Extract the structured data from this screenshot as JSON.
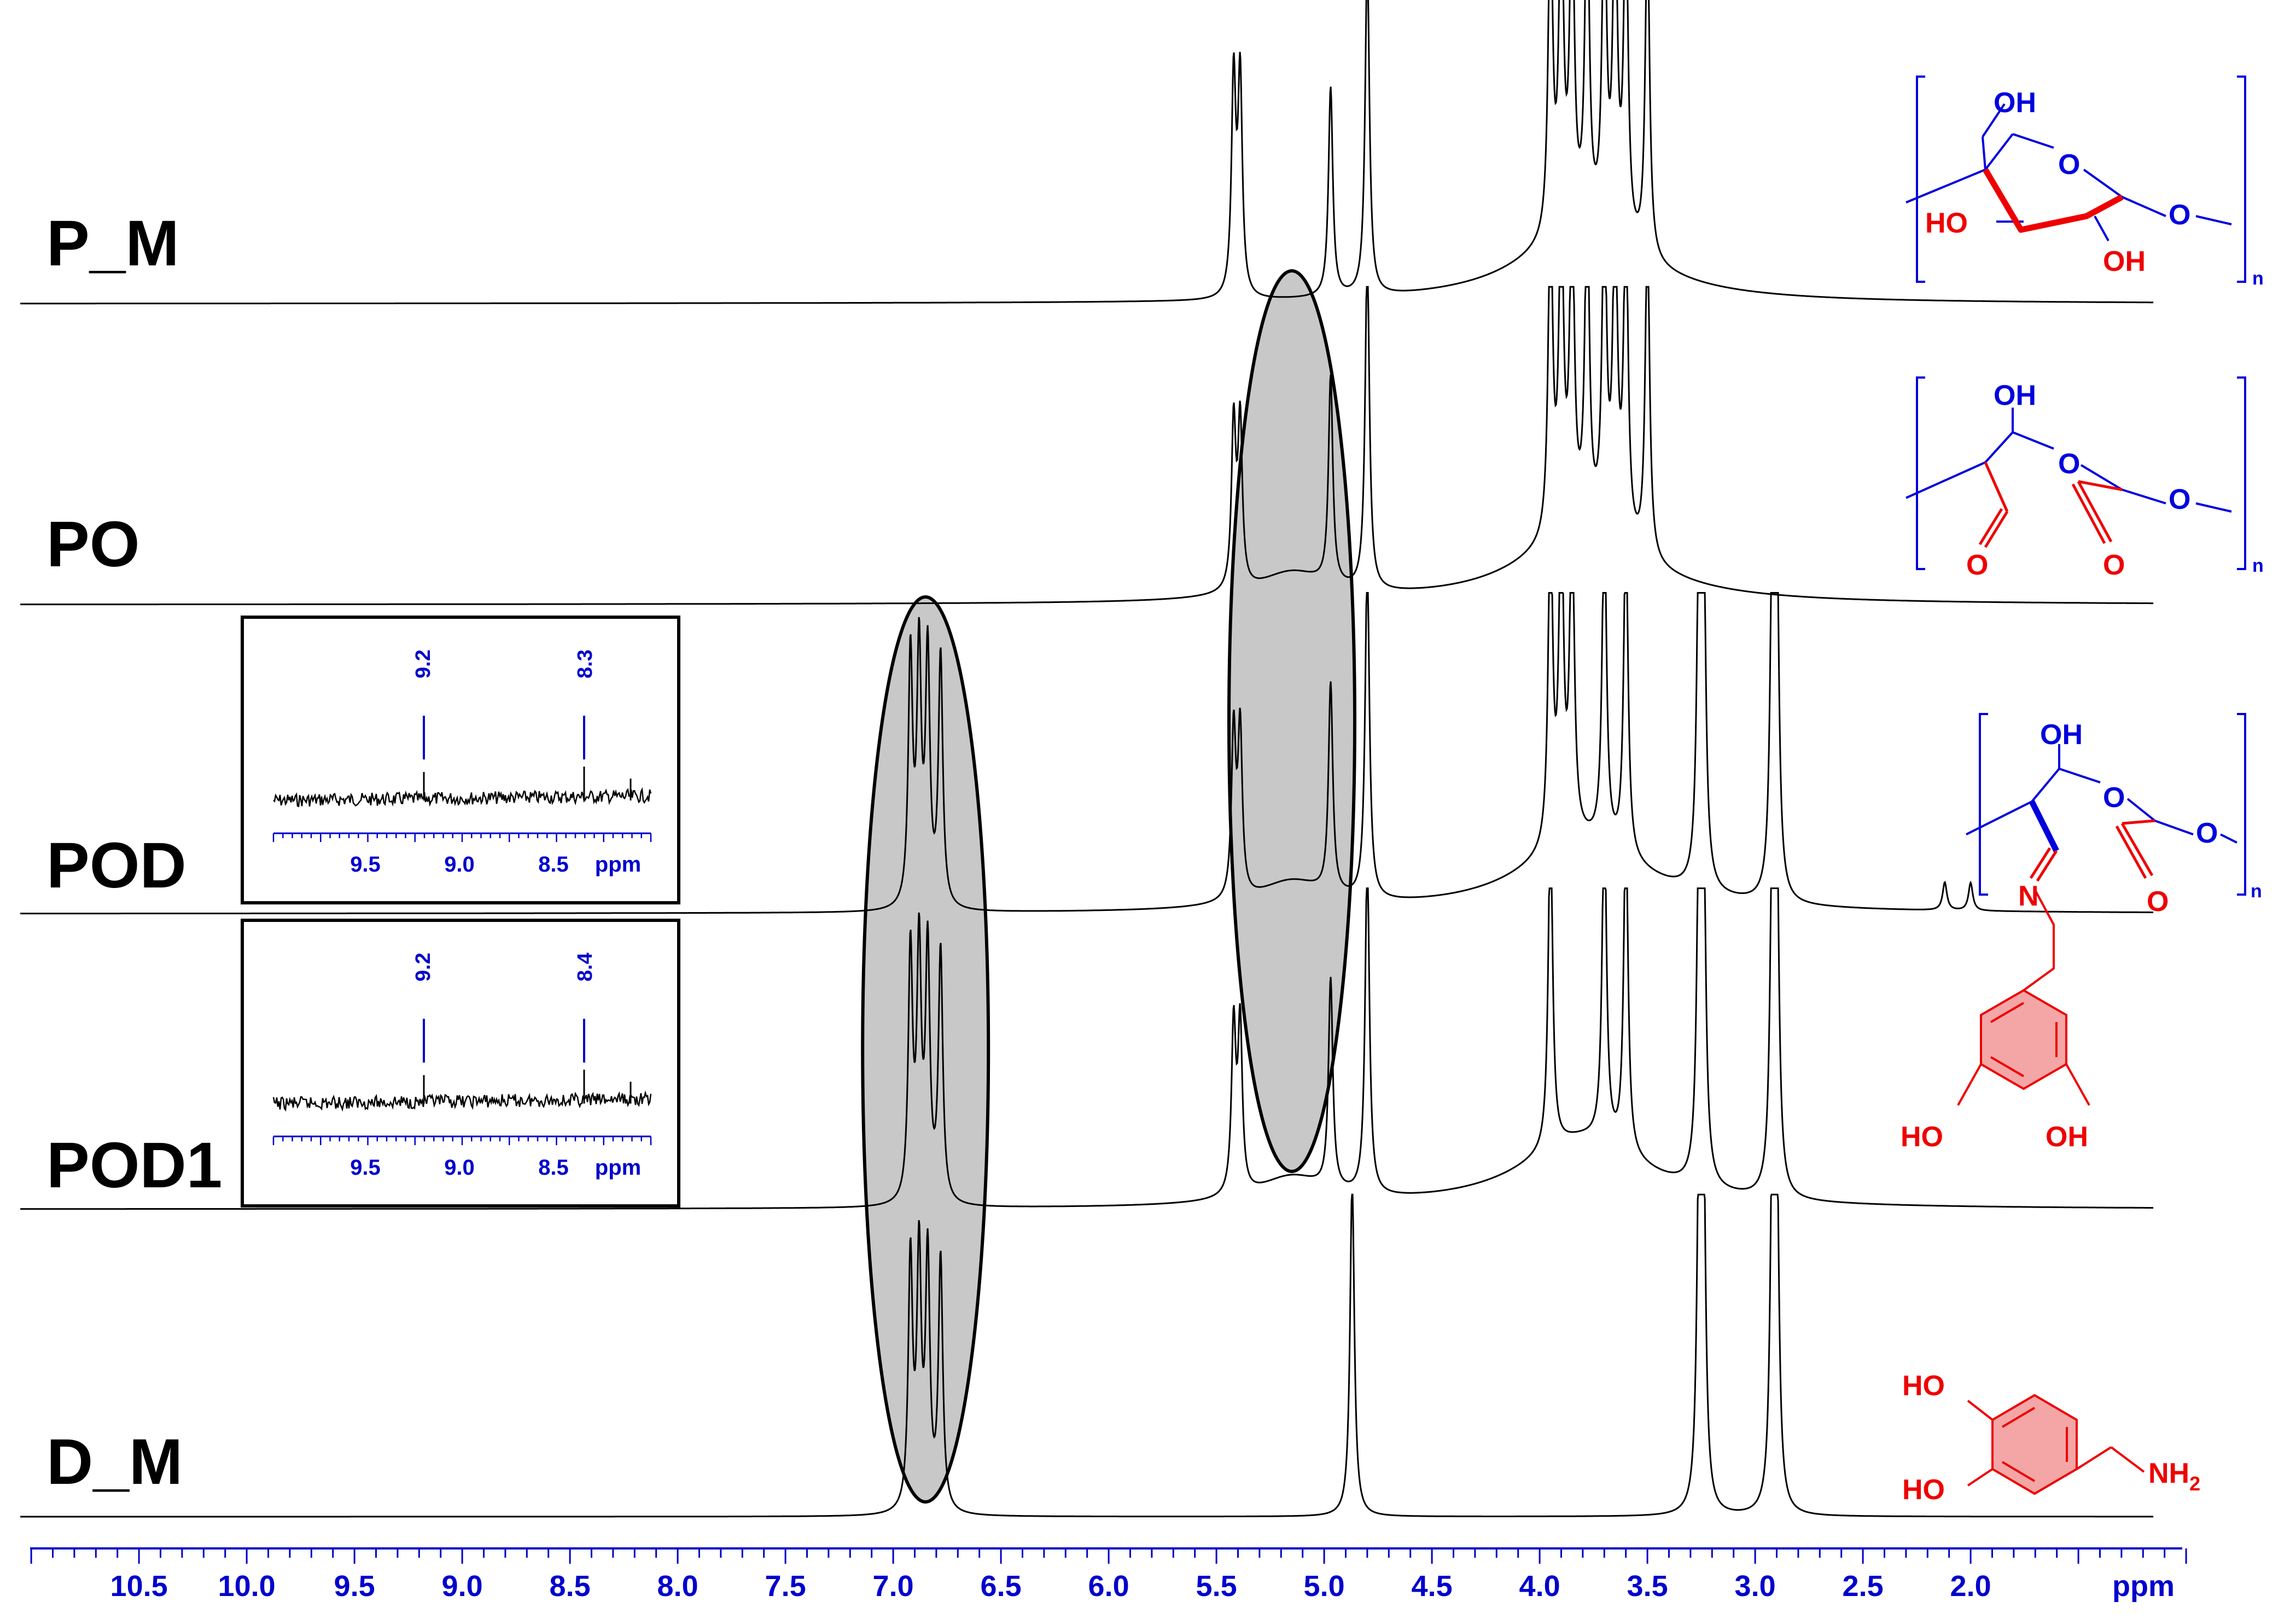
{
  "chart_data": {
    "type": "line",
    "title": "",
    "xlabel": "ppm",
    "x_reversed": true,
    "xlim": [
      11.0,
      1.0
    ],
    "x_ticks": [
      "10.5",
      "10.0",
      "9.5",
      "9.0",
      "8.5",
      "8.0",
      "7.5",
      "7.0",
      "6.5",
      "6.0",
      "5.5",
      "5.0",
      "4.5",
      "4.0",
      "3.5",
      "3.0",
      "2.5",
      "2.0"
    ],
    "series": [
      {
        "name": "P_M",
        "peaks": [
          5.42,
          5.39,
          4.97,
          4.8,
          3.95,
          3.9,
          3.85,
          3.78,
          3.7,
          3.65,
          3.6,
          3.5
        ]
      },
      {
        "name": "PO",
        "peaks": [
          5.42,
          5.39,
          4.97,
          4.8,
          3.95,
          3.9,
          3.85,
          3.78,
          3.7,
          3.65,
          3.6,
          3.5
        ]
      },
      {
        "name": "POD",
        "peaks": [
          6.92,
          6.88,
          6.84,
          6.78,
          5.42,
          5.39,
          4.97,
          4.8,
          3.95,
          3.9,
          3.85,
          3.7,
          3.6,
          3.26,
          3.24,
          2.92,
          2.9,
          2.12,
          2.0
        ]
      },
      {
        "name": "POD1",
        "peaks": [
          6.92,
          6.88,
          6.84,
          6.78,
          5.42,
          5.39,
          4.97,
          4.8,
          3.95,
          3.7,
          3.6,
          3.26,
          3.24,
          2.92,
          2.9
        ]
      },
      {
        "name": "D_M",
        "peaks": [
          6.92,
          6.88,
          6.84,
          6.78,
          4.87,
          3.26,
          3.24,
          2.92,
          2.9
        ]
      }
    ],
    "highlight_regions": [
      {
        "center": 6.85,
        "shape": "ellipse"
      },
      {
        "center": 5.15,
        "shape": "ellipse"
      }
    ],
    "insets": [
      {
        "sample": "POD",
        "xlabel": "ppm",
        "x_ticks": [
          "9.5",
          "9.0",
          "8.5"
        ],
        "peak_labels": [
          "9.2",
          "8.3"
        ]
      },
      {
        "sample": "POD1",
        "xlabel": "ppm",
        "x_ticks": [
          "9.5",
          "9.0",
          "8.5"
        ],
        "peak_labels": [
          "9.2",
          "8.4"
        ]
      }
    ]
  },
  "structures": {
    "n_label": "n",
    "P_M": {
      "oh_top": "OH",
      "ho_left": "HO",
      "oh_bottom": "OH",
      "ring_o": "O",
      "link_o": "O"
    },
    "PO": {
      "oh_top": "OH",
      "ring_o": "O",
      "link_o": "O",
      "aldehyde_o1": "O",
      "aldehyde_o2": "O"
    },
    "POD": {
      "oh_top": "OH",
      "ring_o": "O",
      "link_o": "O",
      "imine_n": "N",
      "aldehyde_o": "O"
    },
    "POD1": {
      "ho_left": "HO",
      "oh_right": "OH"
    },
    "D_M": {
      "ho_top": "HO",
      "ho_bottom": "HO",
      "amine": "NH",
      "amine_sub": "2"
    }
  },
  "colors": {
    "spectrum": "#000000",
    "axis": "#0000cc",
    "ellipse_fill": "#c8c8c8",
    "structure_blue": "#0000dd",
    "structure_red": "#ee0000",
    "ring_fill": "#f4a6a6"
  }
}
